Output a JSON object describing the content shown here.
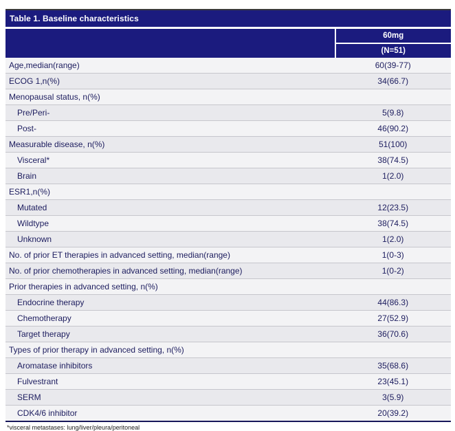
{
  "table": {
    "title": "Table 1. Baseline characteristics",
    "column_header": "60mg",
    "column_subheader": "(N=51)",
    "rows": [
      {
        "label": "Age,median(range)",
        "value": "60(39-77)",
        "indent": 0
      },
      {
        "label": "ECOG 1,n(%)",
        "value": "34(66.7)",
        "indent": 0
      },
      {
        "label": "Menopausal status, n(%)",
        "value": "",
        "indent": 0
      },
      {
        "label": "Pre/Peri-",
        "value": "5(9.8)",
        "indent": 1
      },
      {
        "label": "Post-",
        "value": "46(90.2)",
        "indent": 1
      },
      {
        "label": "Measurable disease, n(%)",
        "value": "51(100)",
        "indent": 0
      },
      {
        "label": "Visceral*",
        "value": "38(74.5)",
        "indent": 1
      },
      {
        "label": "Brain",
        "value": "1(2.0)",
        "indent": 1
      },
      {
        "label": "ESR1,n(%)",
        "value": "",
        "indent": 0
      },
      {
        "label": "Mutated",
        "value": "12(23.5)",
        "indent": 1
      },
      {
        "label": "Wildtype",
        "value": "38(74.5)",
        "indent": 1
      },
      {
        "label": "Unknown",
        "value": "1(2.0)",
        "indent": 1
      },
      {
        "label": "No. of prior ET therapies in advanced setting, median(range)",
        "value": "1(0-3)",
        "indent": 0
      },
      {
        "label": "No. of prior chemotherapies in advanced setting, median(range)",
        "value": "1(0-2)",
        "indent": 0
      },
      {
        "label": "Prior therapies in advanced setting, n(%)",
        "value": "",
        "indent": 0
      },
      {
        "label": "Endocrine therapy",
        "value": "44(86.3)",
        "indent": 1
      },
      {
        "label": "Chemotherapy",
        "value": "27(52.9)",
        "indent": 1
      },
      {
        "label": "Target therapy",
        "value": "36(70.6)",
        "indent": 1
      },
      {
        "label": "Types of prior therapy in advanced setting, n(%)",
        "value": "",
        "indent": 0
      },
      {
        "label": "Aromatase inhibitors",
        "value": "35(68.6)",
        "indent": 1
      },
      {
        "label": "Fulvestrant",
        "value": "23(45.1)",
        "indent": 1
      },
      {
        "label": "SERM",
        "value": "3(5.9)",
        "indent": 1
      },
      {
        "label": "CDK4/6 inhibitor",
        "value": "20(39.2)",
        "indent": 1
      }
    ],
    "footnote": "*visceral metastases: lung/liver/pleura/peritoneal"
  },
  "colors": {
    "header_navy": "#1b1b7e",
    "body_text": "#1c1c5e",
    "row_band_light": "#f3f3f5",
    "row_band_dark": "#e9e9ed",
    "bottom_rule": "#17175a"
  }
}
